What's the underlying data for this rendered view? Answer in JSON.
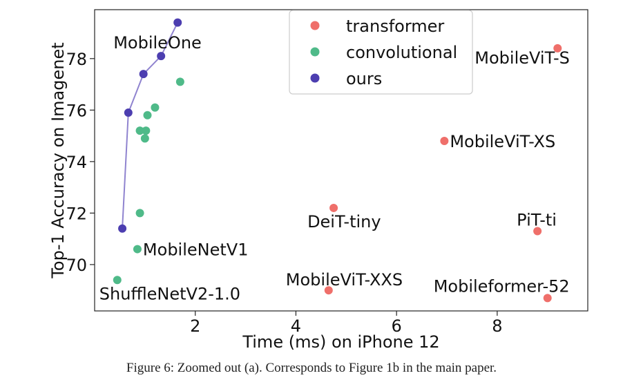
{
  "chart_data": {
    "type": "scatter",
    "xlabel": "Time (ms) on iPhone 12",
    "ylabel": "Top-1 Accuracy on Imagenet",
    "xlim": [
      0.0,
      9.8
    ],
    "ylim": [
      68.2,
      79.9
    ],
    "xticks": [
      2,
      4,
      6,
      8
    ],
    "yticks": [
      70,
      72,
      74,
      76,
      78
    ],
    "grid": false,
    "legend_position": "top-center",
    "series": [
      {
        "name": "transformer",
        "color": "#ef6f6a",
        "points": [
          {
            "x": 9.2,
            "y": 78.4,
            "label": "MobileViT-S"
          },
          {
            "x": 6.95,
            "y": 74.8,
            "label": "MobileViT-XS"
          },
          {
            "x": 4.75,
            "y": 72.2,
            "label": "DeiT-tiny"
          },
          {
            "x": 8.8,
            "y": 71.3,
            "label": "PiT-ti"
          },
          {
            "x": 4.65,
            "y": 69.0,
            "label": "MobileViT-XXS"
          },
          {
            "x": 9.0,
            "y": 68.7,
            "label": "Mobileformer-52"
          }
        ]
      },
      {
        "name": "convolutional",
        "color": "#4fba89",
        "points": [
          {
            "x": 1.7,
            "y": 77.1
          },
          {
            "x": 1.2,
            "y": 76.1
          },
          {
            "x": 1.05,
            "y": 75.8
          },
          {
            "x": 0.9,
            "y": 75.2
          },
          {
            "x": 1.02,
            "y": 75.2
          },
          {
            "x": 1.0,
            "y": 74.9
          },
          {
            "x": 0.9,
            "y": 72.0
          },
          {
            "x": 0.85,
            "y": 70.6,
            "label": "MobileNetV1"
          },
          {
            "x": 0.45,
            "y": 69.4,
            "label": "ShuffleNetV2-1.0"
          }
        ]
      },
      {
        "name": "ours",
        "color": "#4c3eb0",
        "line": true,
        "points": [
          {
            "x": 0.55,
            "y": 71.4
          },
          {
            "x": 0.67,
            "y": 75.9
          },
          {
            "x": 0.97,
            "y": 77.4
          },
          {
            "x": 1.32,
            "y": 78.1
          },
          {
            "x": 1.65,
            "y": 79.4
          }
        ],
        "group_label": "MobileOne"
      }
    ]
  },
  "caption": "Figure 6: Zoomed out (a). Corresponds to Figure 1b in the main paper."
}
